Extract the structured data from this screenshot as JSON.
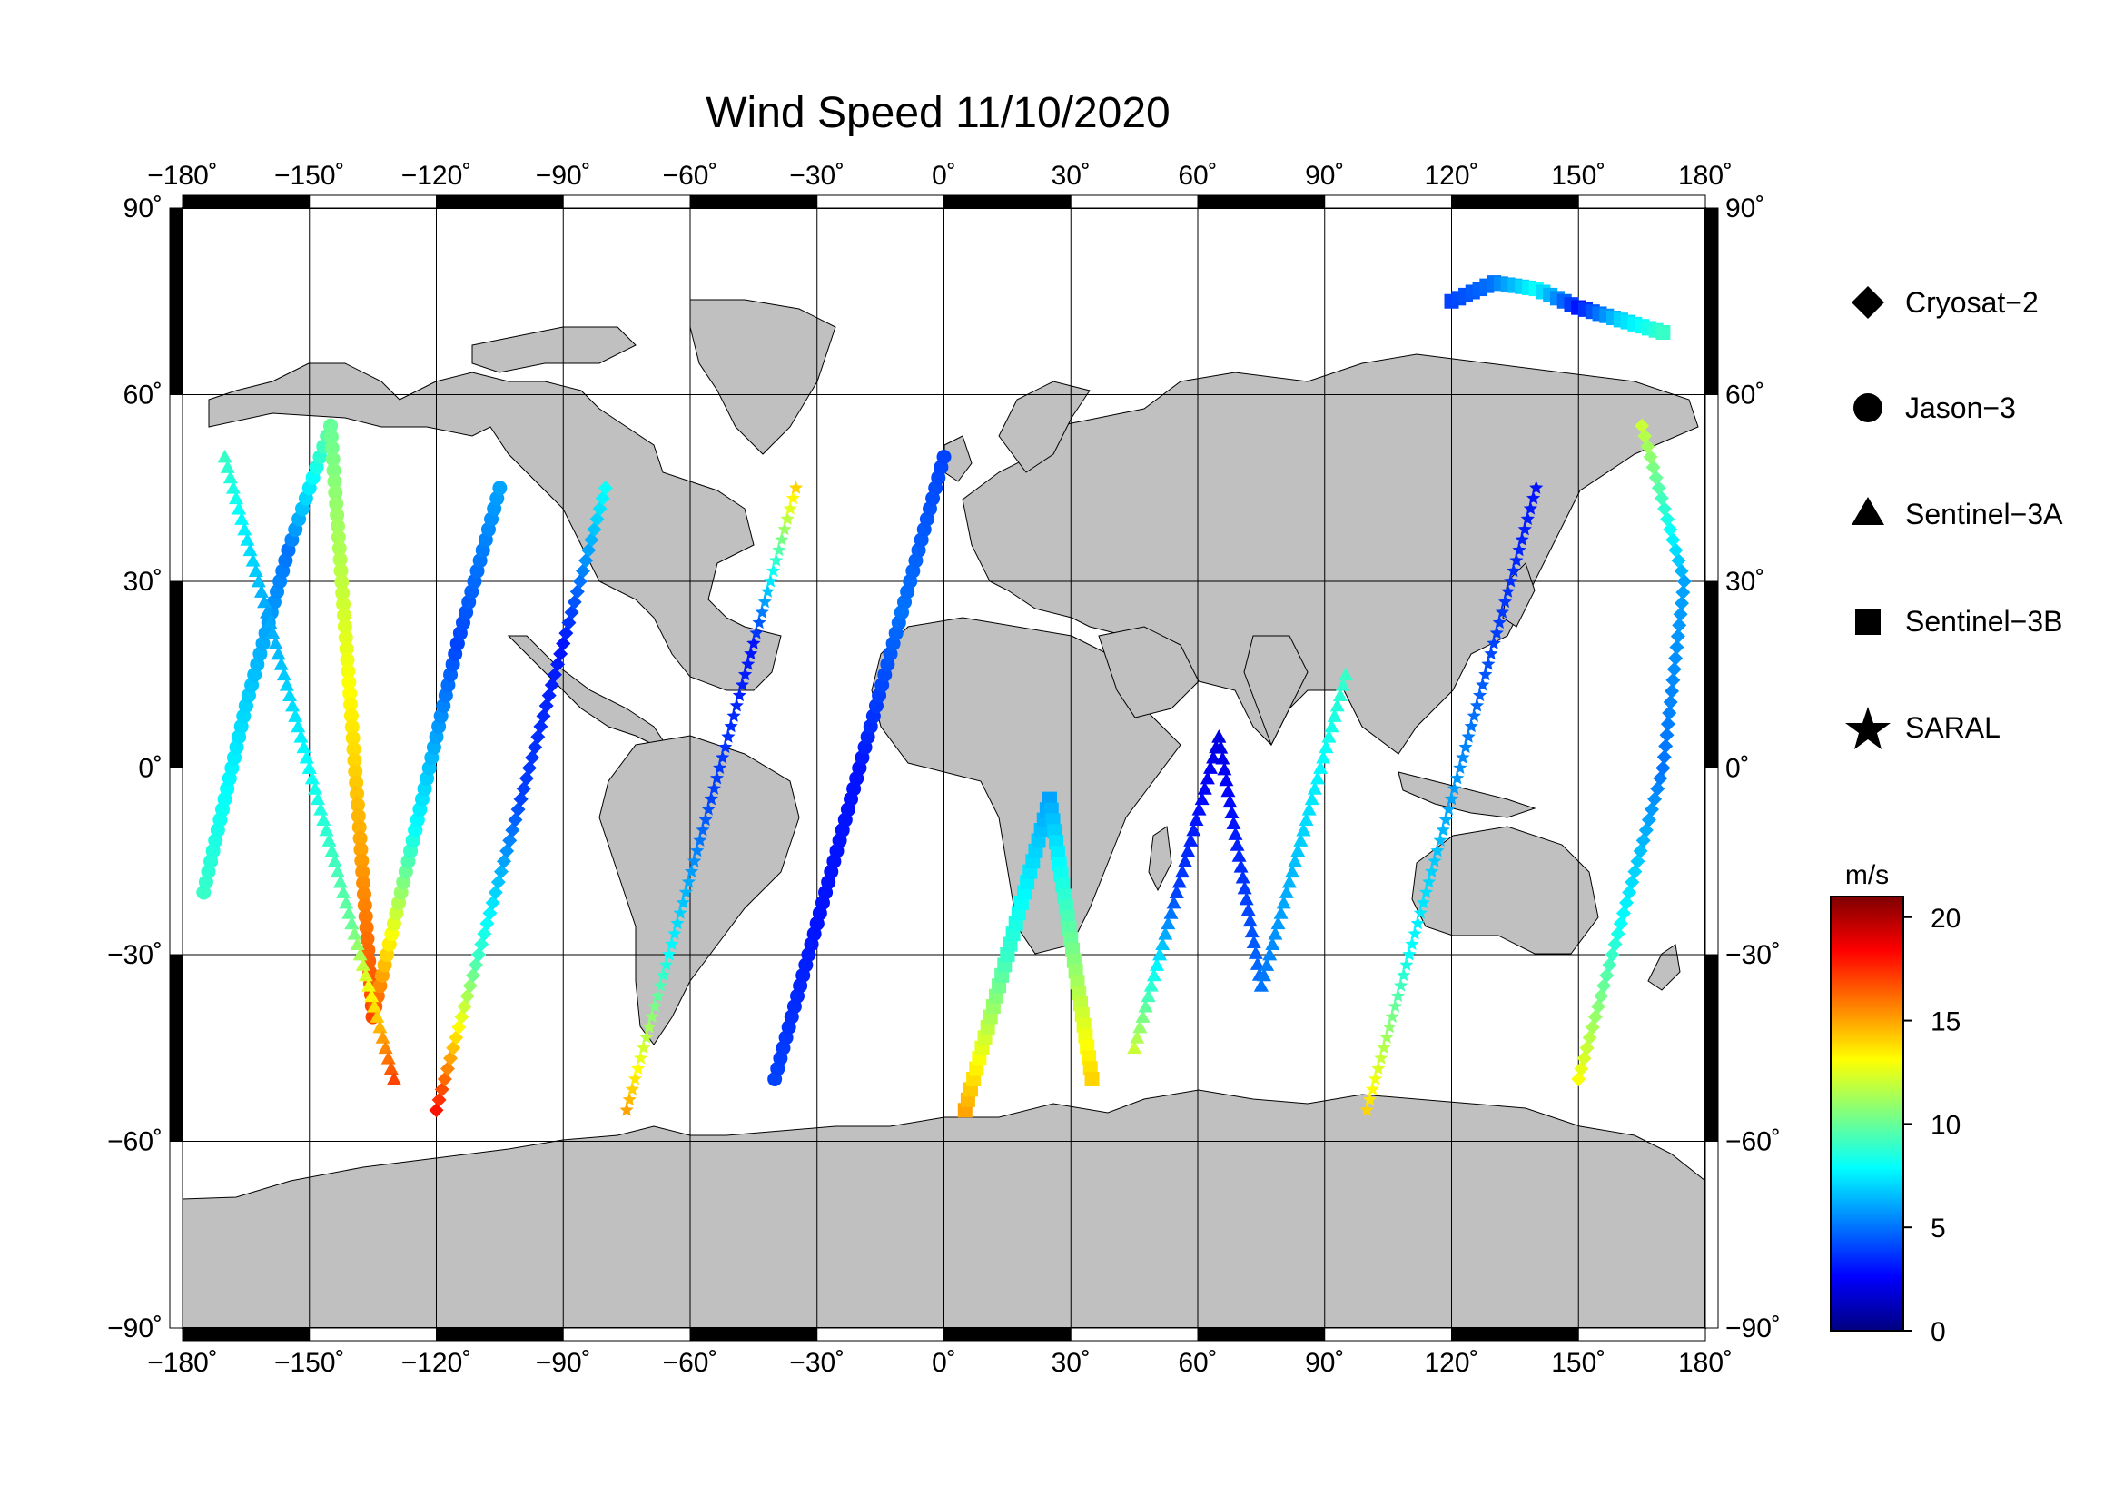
{
  "title": "Wind Speed 11/10/2020",
  "map": {
    "projection": "equirectangular",
    "lon_range": [
      -180,
      180
    ],
    "lat_range": [
      -90,
      90
    ],
    "grid": true,
    "land_color": "#c0c0c0",
    "ocean_color": "#ffffff",
    "lon_ticks": [
      "−180˚",
      "−150˚",
      "−120˚",
      "−90˚",
      "−60˚",
      "−30˚",
      "0˚",
      "30˚",
      "60˚",
      "90˚",
      "120˚",
      "150˚",
      "180˚"
    ],
    "lat_ticks": [
      "90˚",
      "60˚",
      "30˚",
      "0˚",
      "−30˚",
      "−60˚",
      "−90˚"
    ]
  },
  "legend": {
    "items": [
      {
        "label": "Cryosat−2",
        "icon": "diamond-icon"
      },
      {
        "label": "Jason−3",
        "icon": "circle-icon"
      },
      {
        "label": "Sentinel−3A",
        "icon": "triangle-icon"
      },
      {
        "label": "Sentinel−3B",
        "icon": "square-icon"
      },
      {
        "label": "SARAL",
        "icon": "star-icon"
      }
    ]
  },
  "colorbar": {
    "unit": "m/s",
    "ticks": [
      "20",
      "15",
      "10",
      "5",
      "0"
    ],
    "range": [
      0,
      21
    ],
    "colormap": [
      "#00007f",
      "#0000ff",
      "#007fff",
      "#00ffff",
      "#7fff7f",
      "#ffff00",
      "#ff7f00",
      "#ff0000",
      "#7f0000"
    ]
  },
  "chart_data": {
    "type": "scatter",
    "xlabel": "",
    "ylabel": "",
    "xlim": [
      -180,
      180
    ],
    "ylim": [
      -90,
      90
    ],
    "tracks": [
      {
        "satellite": "Jason−3",
        "points": [
          [
            -175,
            -20,
            9
          ],
          [
            -165,
            10,
            7
          ],
          [
            -155,
            35,
            5
          ],
          [
            -145,
            55,
            10
          ],
          [
            -135,
            -40,
            17
          ],
          [
            -125,
            -10,
            8
          ],
          [
            -115,
            20,
            4
          ],
          [
            -105,
            45,
            6
          ]
        ]
      },
      {
        "satellite": "Sentinel−3A",
        "points": [
          [
            -170,
            50,
            9
          ],
          [
            -160,
            25,
            6
          ],
          [
            -150,
            0,
            8
          ],
          [
            -140,
            -25,
            10
          ],
          [
            -130,
            -50,
            17
          ]
        ]
      },
      {
        "satellite": "Cryosat−2",
        "points": [
          [
            -120,
            -55,
            18
          ],
          [
            -110,
            -30,
            9
          ],
          [
            -100,
            -5,
            4
          ],
          [
            -90,
            20,
            3
          ],
          [
            -80,
            45,
            8
          ]
        ]
      },
      {
        "satellite": "SARAL",
        "points": [
          [
            -75,
            -55,
            15
          ],
          [
            -65,
            -30,
            8
          ],
          [
            -55,
            -5,
            4
          ],
          [
            -45,
            20,
            3
          ],
          [
            -35,
            45,
            14
          ]
        ]
      },
      {
        "satellite": "Jason−3",
        "points": [
          [
            -40,
            -50,
            4
          ],
          [
            -30,
            -25,
            3
          ],
          [
            -20,
            0,
            3
          ],
          [
            -10,
            25,
            5
          ],
          [
            0,
            50,
            4
          ]
        ]
      },
      {
        "satellite": "Sentinel−3B",
        "points": [
          [
            5,
            -55,
            15
          ],
          [
            15,
            -30,
            9
          ],
          [
            25,
            -5,
            6
          ],
          [
            35,
            -50,
            14
          ]
        ]
      },
      {
        "satellite": "Sentinel−3A",
        "points": [
          [
            45,
            -45,
            12
          ],
          [
            55,
            -20,
            4
          ],
          [
            65,
            5,
            2
          ],
          [
            75,
            -35,
            5
          ],
          [
            85,
            -10,
            7
          ],
          [
            95,
            15,
            9
          ]
        ]
      },
      {
        "satellite": "SARAL",
        "points": [
          [
            100,
            -55,
            14
          ],
          [
            110,
            -30,
            8
          ],
          [
            120,
            -5,
            6
          ],
          [
            130,
            20,
            4
          ],
          [
            140,
            45,
            3
          ]
        ]
      },
      {
        "satellite": "Cryosat−2",
        "points": [
          [
            150,
            -50,
            13
          ],
          [
            160,
            -25,
            8
          ],
          [
            170,
            0,
            5
          ],
          [
            175,
            30,
            6
          ],
          [
            165,
            55,
            12
          ]
        ]
      },
      {
        "satellite": "Sentinel−3B",
        "points": [
          [
            120,
            75,
            4
          ],
          [
            130,
            78,
            5
          ],
          [
            140,
            77,
            8
          ],
          [
            150,
            74,
            3
          ],
          [
            160,
            72,
            7
          ],
          [
            170,
            70,
            9
          ]
        ]
      }
    ]
  }
}
